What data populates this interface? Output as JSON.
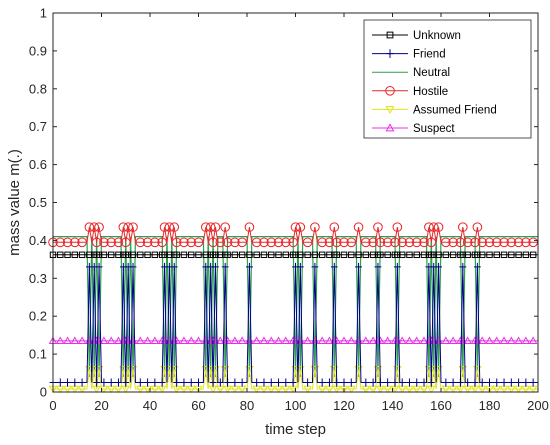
{
  "chart_data": {
    "type": "line",
    "title": "",
    "xlabel": "time step",
    "ylabel": "mass value m(.)",
    "xlim": [
      0,
      200
    ],
    "ylim": [
      0,
      1
    ],
    "xticks": [
      0,
      20,
      40,
      60,
      80,
      100,
      120,
      140,
      160,
      180,
      200
    ],
    "xtick_labels": [
      "0",
      "20",
      "40",
      "60",
      "80",
      "100",
      "120",
      "140",
      "160",
      "180",
      "200"
    ],
    "yticks": [
      0,
      0.1,
      0.2,
      0.3,
      0.4,
      0.5,
      0.6,
      0.7,
      0.8,
      0.9,
      1
    ],
    "ytick_labels": [
      "0",
      "0.1",
      "0.2",
      "0.3",
      "0.4",
      "0.5",
      "0.6",
      "0.7",
      "0.8",
      "0.9",
      "1"
    ],
    "grid": false,
    "legend_position": "top-right",
    "marker_spacing": 3,
    "spike_steps": [
      15,
      17,
      19,
      29,
      31,
      33,
      46,
      48,
      50,
      63,
      65,
      67,
      71,
      81,
      100,
      102,
      108,
      116,
      126,
      134,
      142,
      155,
      157,
      159,
      169,
      175
    ],
    "series": [
      {
        "name": "Unknown",
        "color": "#000000",
        "marker": "square",
        "baseline": 0.362,
        "spike_value": 0.362
      },
      {
        "name": "Friend",
        "color": "#00008b",
        "marker": "plus",
        "baseline": 0.025,
        "spike_value": 0.33
      },
      {
        "name": "Neutral",
        "color": "#2e9e4f",
        "marker": "none",
        "baseline": 0.41,
        "spike_value": 0.04
      },
      {
        "name": "Hostile",
        "color": "#e8282b",
        "marker": "circle",
        "baseline": 0.395,
        "spike_value": 0.435
      },
      {
        "name": "Assumed Friend",
        "color": "#e3e31a",
        "marker": "triangle-down",
        "baseline": 0.008,
        "spike_value": 0.06
      },
      {
        "name": "Suspect",
        "color": "#e830e8",
        "marker": "triangle-up",
        "baseline": 0.135,
        "spike_value": 0.135
      }
    ]
  }
}
